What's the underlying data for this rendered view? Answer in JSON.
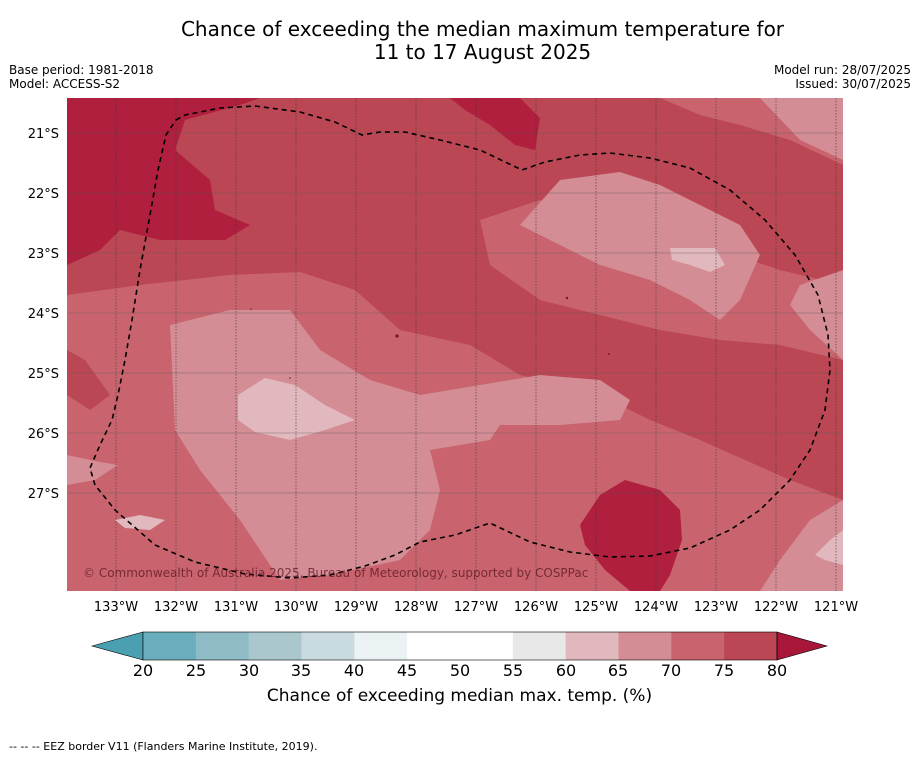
{
  "title": {
    "line1": "Chance of exceeding the median maximum temperature for",
    "line2": "11 to 17 August 2025"
  },
  "meta": {
    "base_period": "Base period: 1981-2018",
    "model": "Model: ACCESS-S2",
    "model_run": "Model run: 28/07/2025",
    "issued": "Issued: 30/07/2025"
  },
  "map": {
    "latitude_ticks": [
      "21°S",
      "22°S",
      "23°S",
      "24°S",
      "25°S",
      "26°S",
      "27°S"
    ],
    "longitude_ticks": [
      "133°W",
      "132°W",
      "131°W",
      "130°W",
      "129°W",
      "128°W",
      "127°W",
      "126°W",
      "125°W",
      "124°W",
      "123°W",
      "122°W",
      "121°W"
    ],
    "copyright": "© Commonwealth of Australia 2025, Bureau of Meteorology, supported by COSPPac"
  },
  "colorbar": {
    "ticks": [
      "20",
      "25",
      "30",
      "35",
      "40",
      "45",
      "50",
      "55",
      "60",
      "65",
      "70",
      "75",
      "80"
    ],
    "colors": [
      "#6aaebd",
      "#8ebbc6",
      "#a9c7cd",
      "#cadbe0",
      "#ebf2f4",
      "#ffffff",
      "#ffffff",
      "#e8e8e8",
      "#e0b8bd",
      "#d48c95",
      "#c9646f",
      "#bb4654"
    ],
    "low_color": "#4aa0b1",
    "high_color": "#a8173a",
    "label": "Chance of exceeding median max. temp. (%)"
  },
  "footnote": "--  --  -- EEZ border V11 (Flanders Marine Institute, 2019)."
}
